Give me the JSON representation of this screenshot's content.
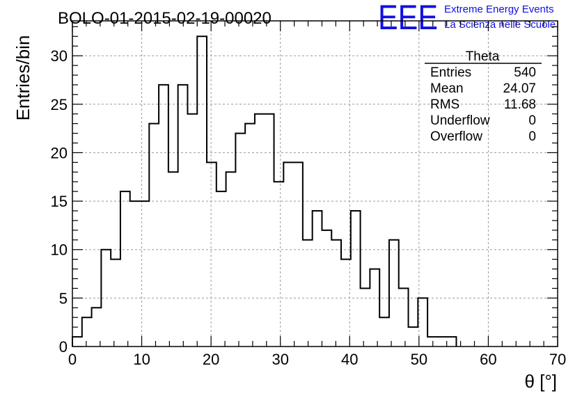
{
  "header": {
    "run_title": "BOLO-01-2015-02-19-00020",
    "logo_text": "EEE",
    "logo_line1": "Extreme Energy Events",
    "logo_line2": "La Scienza nelle Scuole"
  },
  "stats": {
    "name": "Theta",
    "rows": [
      {
        "label": "Entries",
        "value": "540"
      },
      {
        "label": "Mean",
        "value": "24.07"
      },
      {
        "label": "RMS",
        "value": "11.68"
      },
      {
        "label": "Underflow",
        "value": "0"
      },
      {
        "label": "Overflow",
        "value": "0"
      }
    ]
  },
  "colors": {
    "logo": "#1010e0",
    "histogram_line": "#000000",
    "grid": "#999999"
  },
  "chart_data": {
    "type": "histogram",
    "title": "BOLO-01-2015-02-19-00020",
    "xlabel": "θ [°]",
    "ylabel": "Entries/bin",
    "xlim": [
      0,
      70
    ],
    "ylim": [
      0,
      33.6
    ],
    "x_ticks": [
      0,
      10,
      20,
      30,
      40,
      50,
      60,
      70
    ],
    "y_ticks": [
      0,
      5,
      10,
      15,
      20,
      25,
      30
    ],
    "grid": true,
    "bin_width": 1.3846,
    "bin_edges_start": 0,
    "values": [
      1,
      3,
      4,
      10,
      9,
      16,
      15,
      15,
      23,
      27,
      18,
      27,
      24,
      32,
      19,
      16,
      18,
      22,
      23,
      24,
      24,
      17,
      19,
      19,
      11,
      14,
      12,
      11,
      9,
      14,
      6,
      8,
      3,
      11,
      6,
      2,
      5,
      1,
      1,
      1,
      0,
      0,
      0,
      0,
      0,
      0,
      0,
      0,
      0,
      0
    ]
  }
}
